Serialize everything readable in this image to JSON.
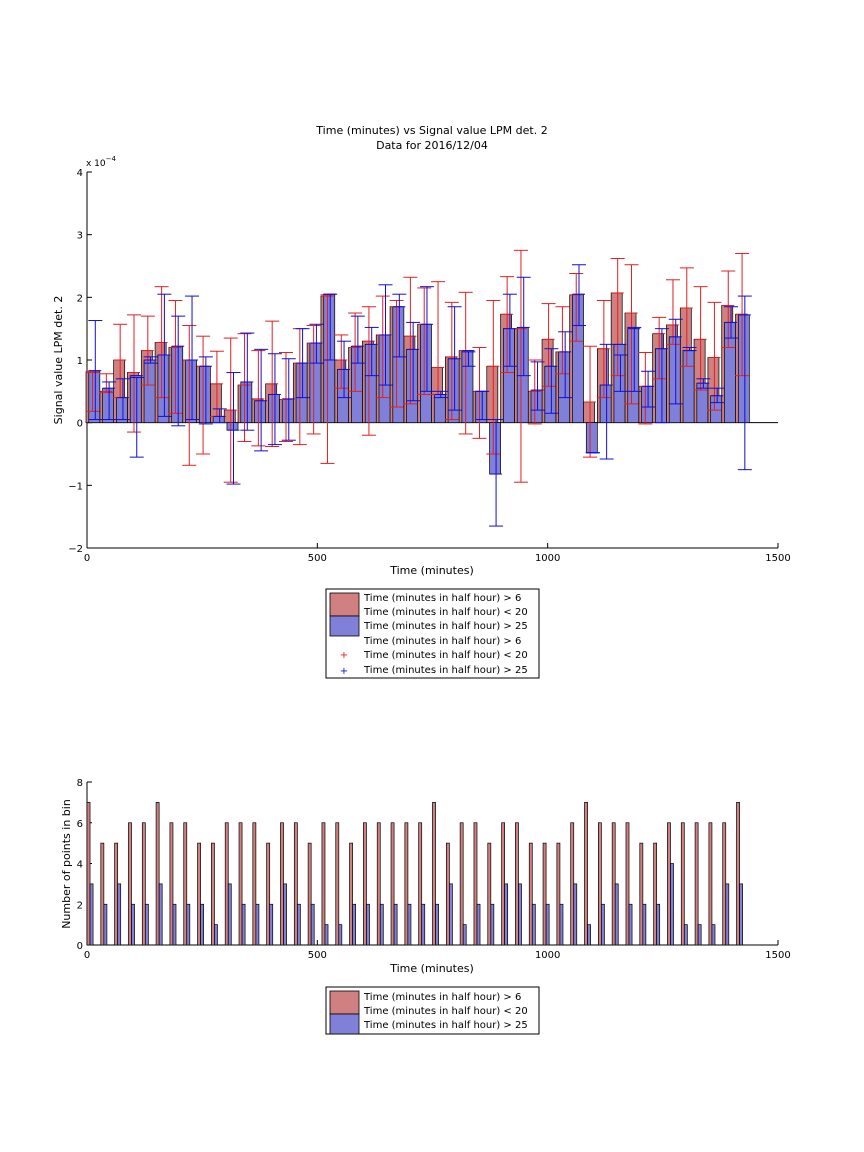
{
  "chart_data": [
    {
      "type": "bar",
      "title": "Time (minutes) vs Signal value LPM det. 2",
      "subtitle": "Data for 2016/12/04",
      "xlabel": "Time (minutes)",
      "ylabel": "Signal value LPM det. 2",
      "exponent_label": "x 10",
      "exponent_power": "−4",
      "xlim": [
        0,
        1500
      ],
      "ylim": [
        -2,
        4
      ],
      "xticks": [
        "0",
        "500",
        "1000",
        "1500"
      ],
      "yticks": [
        "−2",
        "−1",
        "0",
        "1",
        "2",
        "3",
        "4"
      ],
      "grid": false,
      "legend_position": "below",
      "legend": [
        "Time (minutes in half hour) > 6",
        "Time (minutes in half hour) < 20",
        "Time (minutes in half hour) > 25",
        "Time (minutes in half hour) > 6",
        "Time (minutes in half hour) < 20",
        "Time (minutes in half hour) > 25"
      ],
      "x": [
        0,
        30,
        60,
        90,
        120,
        150,
        180,
        210,
        240,
        270,
        300,
        330,
        360,
        390,
        420,
        450,
        480,
        510,
        540,
        570,
        600,
        630,
        660,
        690,
        720,
        750,
        780,
        810,
        840,
        870,
        900,
        930,
        960,
        990,
        1020,
        1050,
        1080,
        1110,
        1140,
        1170,
        1200,
        1230,
        1260,
        1290,
        1320,
        1350,
        1380,
        1410
      ],
      "series": [
        {
          "color": "#d08080",
          "errcolor": "#e02020",
          "values": [
            0.8,
            0.5,
            1.0,
            0.8,
            1.15,
            1.28,
            1.2,
            1.0,
            0.9,
            0.62,
            0.2,
            0.6,
            0.38,
            0.62,
            0.37,
            0.95,
            1.27,
            2.02,
            1.0,
            1.2,
            1.3,
            1.4,
            1.85,
            1.38,
            1.57,
            0.88,
            1.05,
            1.15,
            0.5,
            0.9,
            1.73,
            1.5,
            0.5,
            1.33,
            1.13,
            2.04,
            0.33,
            1.18,
            2.07,
            1.75,
            0.58,
            1.42,
            1.56,
            1.83,
            1.33,
            1.04,
            1.87,
            1.73
          ],
          "err_low": [
            0.18,
            0.48,
            0.4,
            -0.15,
            0.6,
            0.4,
            0.15,
            -0.68,
            -0.5,
            0.1,
            -0.95,
            -0.3,
            -0.37,
            -0.38,
            -0.3,
            -0.35,
            -0.18,
            -0.65,
            0.55,
            0.5,
            -0.2,
            0.4,
            0.25,
            0.3,
            0.45,
            0.45,
            0.05,
            -0.18,
            -0.25,
            -0.5,
            0.8,
            -0.95,
            -0.02,
            0.58,
            0.78,
            1.3,
            -0.55,
            0.4,
            0.75,
            0.3,
            -0.02,
            0.7,
            1.25,
            0.9,
            0.52,
            0.2,
            1.2,
            0.75
          ],
          "err_high": [
            0.82,
            0.78,
            1.57,
            1.72,
            1.7,
            2.17,
            1.95,
            1.55,
            1.38,
            1.14,
            1.35,
            1.42,
            1.15,
            1.62,
            1.12,
            1.5,
            1.55,
            2.04,
            1.4,
            1.75,
            1.85,
            2.02,
            1.95,
            2.32,
            2.15,
            2.25,
            1.92,
            2.08,
            1.2,
            1.95,
            2.33,
            2.75,
            1.0,
            1.9,
            1.85,
            2.38,
            1.22,
            1.95,
            2.62,
            2.52,
            1.12,
            1.68,
            2.28,
            2.47,
            2.17,
            1.92,
            2.42,
            2.7
          ]
        },
        {
          "color": "#8080d8",
          "errcolor": "#1010d0",
          "values": [
            0.83,
            0.55,
            0.4,
            0.75,
            1.0,
            1.08,
            1.22,
            1.0,
            0.9,
            0.1,
            -0.12,
            0.65,
            0.35,
            0.45,
            0.38,
            0.95,
            1.27,
            2.05,
            0.85,
            1.22,
            1.25,
            1.4,
            1.85,
            1.17,
            1.57,
            0.45,
            1.02,
            1.15,
            0.5,
            -0.82,
            1.5,
            1.52,
            0.52,
            0.9,
            1.13,
            2.05,
            -0.48,
            0.6,
            1.25,
            1.5,
            0.58,
            1.18,
            1.37,
            1.15,
            0.63,
            0.43,
            1.6,
            1.72
          ],
          "err_low": [
            0.05,
            0.05,
            0.05,
            -0.55,
            0.95,
            0.1,
            -0.05,
            0.05,
            -0.02,
            0.0,
            -0.98,
            -0.12,
            -0.45,
            -0.35,
            -0.28,
            0.4,
            0.95,
            1.0,
            0.4,
            0.95,
            0.75,
            0.6,
            1.05,
            0.35,
            0.5,
            0.4,
            0.2,
            0.9,
            0.05,
            -1.65,
            0.9,
            0.75,
            0.2,
            0.15,
            0.4,
            1.55,
            -0.48,
            -0.58,
            0.5,
            0.5,
            0.25,
            0.0,
            0.3,
            1.15,
            0.55,
            0.32,
            1.35,
            -0.75
          ],
          "err_high": [
            1.63,
            0.65,
            0.7,
            0.72,
            1.05,
            2.05,
            1.7,
            2.02,
            1.05,
            0.22,
            0.8,
            1.43,
            1.17,
            1.1,
            1.02,
            1.5,
            1.57,
            2.05,
            1.3,
            1.7,
            1.52,
            2.2,
            2.05,
            1.6,
            2.17,
            0.5,
            1.85,
            1.13,
            0.5,
            0.05,
            2.05,
            2.32,
            0.97,
            1.18,
            1.45,
            2.52,
            -0.48,
            1.25,
            1.08,
            1.52,
            0.82,
            1.5,
            1.65,
            1.2,
            0.7,
            0.55,
            1.85,
            2.02
          ]
        }
      ]
    },
    {
      "type": "bar",
      "xlabel": "Time (minutes)",
      "ylabel": "Number of points in bin",
      "xlim": [
        0,
        1500
      ],
      "ylim": [
        0,
        8
      ],
      "xticks": [
        "0",
        "500",
        "1000",
        "1500"
      ],
      "yticks": [
        "0",
        "2",
        "4",
        "6",
        "8"
      ],
      "grid": false,
      "legend_position": "below",
      "legend": [
        "Time (minutes in half hour) > 6",
        "Time (minutes in half hour) < 20",
        "Time (minutes in half hour) > 25"
      ],
      "x": [
        0,
        30,
        60,
        90,
        120,
        150,
        180,
        210,
        240,
        270,
        300,
        330,
        360,
        390,
        420,
        450,
        480,
        510,
        540,
        570,
        600,
        630,
        660,
        690,
        720,
        750,
        780,
        810,
        840,
        870,
        900,
        930,
        960,
        990,
        1020,
        1050,
        1080,
        1110,
        1140,
        1170,
        1200,
        1230,
        1260,
        1290,
        1320,
        1350,
        1380,
        1410
      ],
      "series": [
        {
          "color": "#d08080",
          "values": [
            7,
            5,
            5,
            6,
            6,
            7,
            6,
            6,
            5,
            5,
            6,
            6,
            6,
            5,
            6,
            6,
            5,
            6,
            6,
            5,
            6,
            6,
            6,
            6,
            6,
            7,
            5,
            6,
            6,
            5,
            6,
            6,
            5,
            5,
            5,
            6,
            7,
            6,
            6,
            6,
            5,
            5,
            6,
            6,
            6,
            6,
            6,
            7
          ]
        },
        {
          "color": "#8080d8",
          "values": [
            3,
            2,
            3,
            2,
            2,
            3,
            2,
            2,
            2,
            1,
            3,
            2,
            2,
            2,
            3,
            2,
            2,
            1,
            1,
            2,
            2,
            2,
            2,
            2,
            2,
            2,
            3,
            1,
            2,
            2,
            3,
            3,
            2,
            2,
            2,
            3,
            1,
            2,
            3,
            2,
            2,
            2,
            4,
            1,
            1,
            1,
            3,
            3
          ]
        }
      ]
    }
  ]
}
